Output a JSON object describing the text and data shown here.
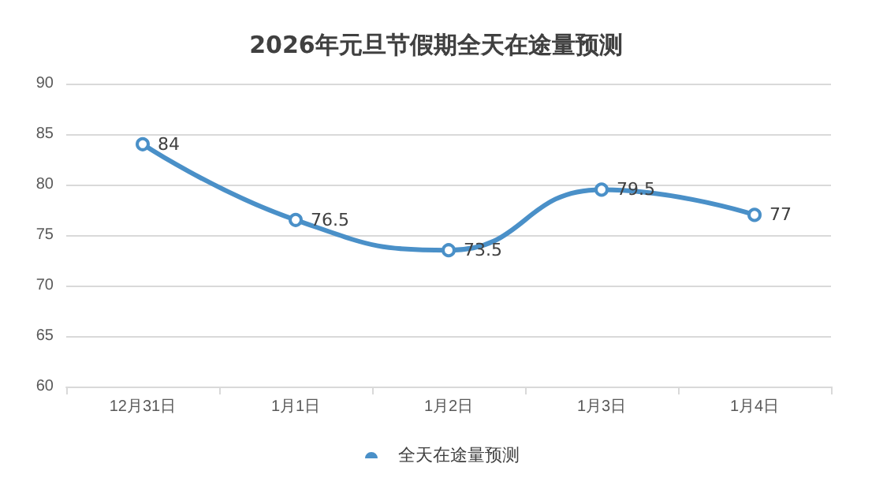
{
  "chart_data": {
    "type": "line",
    "title": "2026年元旦节假期全天在途量预测",
    "categories": [
      "12月31日",
      "1月1日",
      "1月2日",
      "1月3日",
      "1月4日"
    ],
    "series": [
      {
        "name": "全天在途量预测",
        "color": "#4a90c8",
        "values": [
          84,
          76.5,
          73.5,
          79.5,
          77
        ]
      }
    ],
    "ylim": [
      60,
      90
    ],
    "yticks": [
      60,
      65,
      70,
      75,
      80,
      85,
      90
    ],
    "grid": "y",
    "legend": "bottom",
    "marker": "circle",
    "line_style": "solid",
    "data_labels": true
  }
}
